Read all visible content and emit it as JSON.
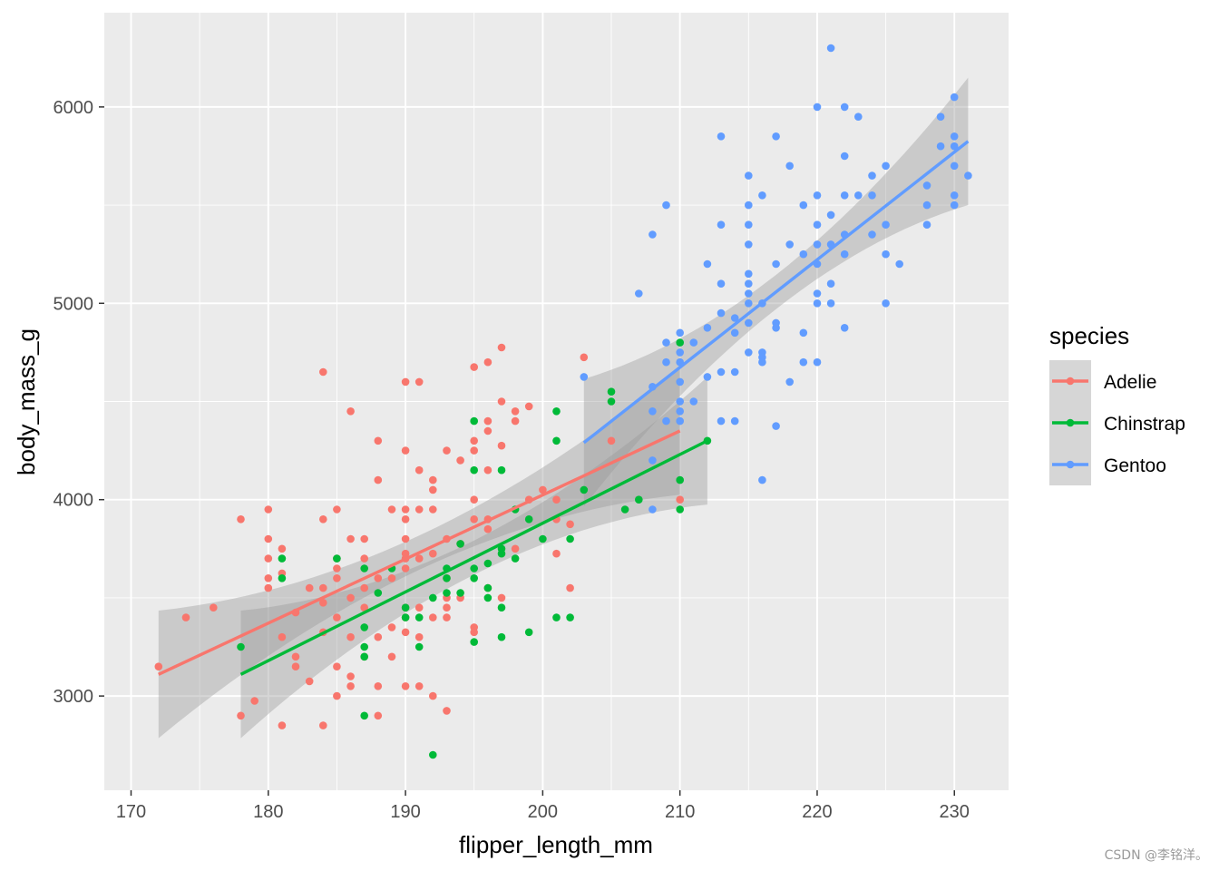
{
  "chart_data": {
    "type": "scatter",
    "title": "",
    "xlabel": "flipper_length_mm",
    "ylabel": "body_mass_g",
    "xlim": [
      168.05,
      233.95
    ],
    "ylim": [
      2520,
      6480
    ],
    "x_ticks": [
      170,
      180,
      190,
      200,
      210,
      220,
      230
    ],
    "x_minor_ticks": [
      175,
      185,
      195,
      205,
      215,
      225
    ],
    "y_ticks": [
      3000,
      4000,
      5000,
      6000
    ],
    "y_minor_ticks": [
      2500,
      3500,
      4500,
      5500,
      6500
    ],
    "grid": true,
    "legend": {
      "title": "species",
      "position": "right"
    },
    "series": [
      {
        "name": "Adelie",
        "color": "#F8766D",
        "fit": {
          "x0": 172,
          "y0": 3110,
          "x1": 210,
          "y1": 4350,
          "se_start": 190,
          "se_end": 190
        },
        "points": [
          [
            172,
            3150
          ],
          [
            174,
            3400
          ],
          [
            176,
            3450
          ],
          [
            178,
            3900
          ],
          [
            178,
            2900
          ],
          [
            179,
            2975
          ],
          [
            180,
            3950
          ],
          [
            180,
            3800
          ],
          [
            180,
            3700
          ],
          [
            180,
            3600
          ],
          [
            180,
            3550
          ],
          [
            181,
            3750
          ],
          [
            181,
            3625
          ],
          [
            181,
            3300
          ],
          [
            181,
            2850
          ],
          [
            182,
            3425
          ],
          [
            182,
            3200
          ],
          [
            182,
            3150
          ],
          [
            183,
            3550
          ],
          [
            183,
            3075
          ],
          [
            184,
            4650
          ],
          [
            184,
            3900
          ],
          [
            184,
            3550
          ],
          [
            184,
            3475
          ],
          [
            184,
            3325
          ],
          [
            184,
            2850
          ],
          [
            185,
            3950
          ],
          [
            185,
            3700
          ],
          [
            185,
            3650
          ],
          [
            185,
            3600
          ],
          [
            185,
            3400
          ],
          [
            185,
            3150
          ],
          [
            185,
            3000
          ],
          [
            186,
            4450
          ],
          [
            186,
            3800
          ],
          [
            186,
            3500
          ],
          [
            186,
            3300
          ],
          [
            186,
            3100
          ],
          [
            186,
            3050
          ],
          [
            187,
            3800
          ],
          [
            187,
            3700
          ],
          [
            187,
            3550
          ],
          [
            187,
            3450
          ],
          [
            187,
            3200
          ],
          [
            188,
            4300
          ],
          [
            188,
            4100
          ],
          [
            188,
            3600
          ],
          [
            188,
            3300
          ],
          [
            188,
            3050
          ],
          [
            188,
            2900
          ],
          [
            189,
            3950
          ],
          [
            189,
            3600
          ],
          [
            189,
            3350
          ],
          [
            189,
            3200
          ],
          [
            190,
            4600
          ],
          [
            190,
            4250
          ],
          [
            190,
            3950
          ],
          [
            190,
            3900
          ],
          [
            190,
            3800
          ],
          [
            190,
            3725
          ],
          [
            190,
            3700
          ],
          [
            190,
            3650
          ],
          [
            190,
            3450
          ],
          [
            190,
            3400
          ],
          [
            190,
            3325
          ],
          [
            190,
            3050
          ],
          [
            191,
            4600
          ],
          [
            191,
            4150
          ],
          [
            191,
            3950
          ],
          [
            191,
            3700
          ],
          [
            191,
            3450
          ],
          [
            191,
            3300
          ],
          [
            191,
            3050
          ],
          [
            192,
            4100
          ],
          [
            192,
            4050
          ],
          [
            192,
            3950
          ],
          [
            192,
            3725
          ],
          [
            192,
            3400
          ],
          [
            192,
            3000
          ],
          [
            193,
            4250
          ],
          [
            193,
            3800
          ],
          [
            193,
            3600
          ],
          [
            193,
            3500
          ],
          [
            193,
            3450
          ],
          [
            193,
            3400
          ],
          [
            193,
            2925
          ],
          [
            194,
            4200
          ],
          [
            194,
            3775
          ],
          [
            194,
            3500
          ],
          [
            195,
            4675
          ],
          [
            195,
            4300
          ],
          [
            195,
            4250
          ],
          [
            195,
            4000
          ],
          [
            195,
            3900
          ],
          [
            195,
            3350
          ],
          [
            195,
            3325
          ],
          [
            196,
            4700
          ],
          [
            196,
            4400
          ],
          [
            196,
            4350
          ],
          [
            196,
            4150
          ],
          [
            196,
            3900
          ],
          [
            196,
            3850
          ],
          [
            196,
            3550
          ],
          [
            197,
            4775
          ],
          [
            197,
            4500
          ],
          [
            197,
            4275
          ],
          [
            197,
            3500
          ],
          [
            198,
            4450
          ],
          [
            198,
            4400
          ],
          [
            198,
            3750
          ],
          [
            199,
            4475
          ],
          [
            199,
            4000
          ],
          [
            200,
            4050
          ],
          [
            201,
            4000
          ],
          [
            201,
            3900
          ],
          [
            201,
            3725
          ],
          [
            202,
            3875
          ],
          [
            202,
            3550
          ],
          [
            203,
            4725
          ],
          [
            205,
            4300
          ],
          [
            210,
            4000
          ]
        ]
      },
      {
        "name": "Chinstrap",
        "color": "#00BA38",
        "fit": {
          "x0": 178,
          "y0": 3110,
          "x1": 212,
          "y1": 4300,
          "se_start": 192,
          "se_end": 192
        },
        "points": [
          [
            178,
            3250
          ],
          [
            181,
            3700
          ],
          [
            181,
            3600
          ],
          [
            185,
            3700
          ],
          [
            187,
            3650
          ],
          [
            187,
            3350
          ],
          [
            187,
            3250
          ],
          [
            187,
            3200
          ],
          [
            187,
            2900
          ],
          [
            188,
            3525
          ],
          [
            189,
            3650
          ],
          [
            190,
            3450
          ],
          [
            190,
            3400
          ],
          [
            191,
            3400
          ],
          [
            191,
            3250
          ],
          [
            192,
            3500
          ],
          [
            192,
            2700
          ],
          [
            193,
            3650
          ],
          [
            193,
            3600
          ],
          [
            193,
            3525
          ],
          [
            194,
            3775
          ],
          [
            194,
            3525
          ],
          [
            195,
            4400
          ],
          [
            195,
            4150
          ],
          [
            195,
            3650
          ],
          [
            195,
            3600
          ],
          [
            195,
            3275
          ],
          [
            196,
            3675
          ],
          [
            196,
            3550
          ],
          [
            196,
            3500
          ],
          [
            197,
            4150
          ],
          [
            197,
            3750
          ],
          [
            197,
            3725
          ],
          [
            197,
            3450
          ],
          [
            197,
            3300
          ],
          [
            198,
            3950
          ],
          [
            198,
            3700
          ],
          [
            199,
            3325
          ],
          [
            199,
            3900
          ],
          [
            200,
            3800
          ],
          [
            201,
            4450
          ],
          [
            201,
            4300
          ],
          [
            201,
            3400
          ],
          [
            202,
            3800
          ],
          [
            202,
            3400
          ],
          [
            203,
            4050
          ],
          [
            205,
            4550
          ],
          [
            205,
            4500
          ],
          [
            206,
            3950
          ],
          [
            207,
            4000
          ],
          [
            210,
            4800
          ],
          [
            210,
            4100
          ],
          [
            210,
            3950
          ],
          [
            212,
            4300
          ]
        ]
      },
      {
        "name": "Gentoo",
        "color": "#619CFF",
        "fit": {
          "x0": 203,
          "y0": 4290,
          "x1": 231,
          "y1": 5825,
          "se_start": 217,
          "se_end": 217
        },
        "points": [
          [
            203,
            4625
          ],
          [
            207,
            5050
          ],
          [
            208,
            5350
          ],
          [
            208,
            4575
          ],
          [
            208,
            4450
          ],
          [
            208,
            4200
          ],
          [
            208,
            3950
          ],
          [
            209,
            5500
          ],
          [
            209,
            4800
          ],
          [
            209,
            4700
          ],
          [
            209,
            4400
          ],
          [
            210,
            4850
          ],
          [
            210,
            4750
          ],
          [
            210,
            4700
          ],
          [
            210,
            4600
          ],
          [
            210,
            4500
          ],
          [
            210,
            4450
          ],
          [
            210,
            4400
          ],
          [
            211,
            4800
          ],
          [
            211,
            4500
          ],
          [
            212,
            5200
          ],
          [
            212,
            4875
          ],
          [
            212,
            4625
          ],
          [
            213,
            5850
          ],
          [
            213,
            5400
          ],
          [
            213,
            5100
          ],
          [
            213,
            4950
          ],
          [
            213,
            4650
          ],
          [
            213,
            4400
          ],
          [
            214,
            4925
          ],
          [
            214,
            4850
          ],
          [
            214,
            4650
          ],
          [
            214,
            4400
          ],
          [
            215,
            5650
          ],
          [
            215,
            5500
          ],
          [
            215,
            5400
          ],
          [
            215,
            5300
          ],
          [
            215,
            5150
          ],
          [
            215,
            5100
          ],
          [
            215,
            5050
          ],
          [
            215,
            5000
          ],
          [
            215,
            4900
          ],
          [
            215,
            4750
          ],
          [
            216,
            5550
          ],
          [
            216,
            5000
          ],
          [
            216,
            4750
          ],
          [
            216,
            4725
          ],
          [
            216,
            4700
          ],
          [
            216,
            4100
          ],
          [
            217,
            5850
          ],
          [
            217,
            5200
          ],
          [
            217,
            4900
          ],
          [
            217,
            4875
          ],
          [
            217,
            4375
          ],
          [
            218,
            5700
          ],
          [
            218,
            5300
          ],
          [
            218,
            4600
          ],
          [
            219,
            5500
          ],
          [
            219,
            5250
          ],
          [
            219,
            4850
          ],
          [
            219,
            4700
          ],
          [
            220,
            6000
          ],
          [
            220,
            5550
          ],
          [
            220,
            5400
          ],
          [
            220,
            5300
          ],
          [
            220,
            5200
          ],
          [
            220,
            5050
          ],
          [
            220,
            5000
          ],
          [
            220,
            4700
          ],
          [
            221,
            6300
          ],
          [
            221,
            5450
          ],
          [
            221,
            5300
          ],
          [
            221,
            5100
          ],
          [
            221,
            5000
          ],
          [
            222,
            6000
          ],
          [
            222,
            5750
          ],
          [
            222,
            5550
          ],
          [
            222,
            5350
          ],
          [
            222,
            5250
          ],
          [
            222,
            4875
          ],
          [
            223,
            5950
          ],
          [
            223,
            5550
          ],
          [
            224,
            5650
          ],
          [
            224,
            5550
          ],
          [
            224,
            5350
          ],
          [
            225,
            5700
          ],
          [
            225,
            5400
          ],
          [
            225,
            5250
          ],
          [
            225,
            5000
          ],
          [
            226,
            5200
          ],
          [
            228,
            5600
          ],
          [
            228,
            5500
          ],
          [
            228,
            5400
          ],
          [
            229,
            5950
          ],
          [
            229,
            5800
          ],
          [
            230,
            6050
          ],
          [
            230,
            5850
          ],
          [
            230,
            5800
          ],
          [
            230,
            5700
          ],
          [
            230,
            5550
          ],
          [
            230,
            5500
          ],
          [
            231,
            5650
          ]
        ]
      }
    ]
  },
  "watermark": "CSDN @李铭洋。"
}
